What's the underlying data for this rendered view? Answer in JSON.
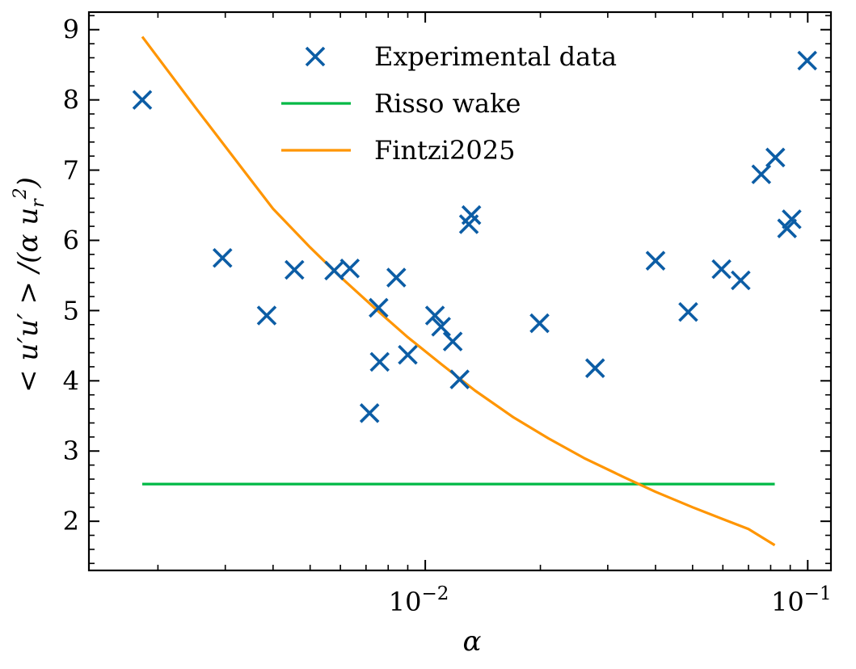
{
  "chart_data": {
    "type": "scatter",
    "title": "",
    "xlabel": "α",
    "ylabel": "< u′u′ > /(α u_r²)",
    "xscale": "log",
    "xlim": [
      0.00132,
      0.115
    ],
    "ylim": [
      1.3,
      9.25
    ],
    "grid": false,
    "legend_position": "top-center",
    "x_ticks": [
      {
        "value": 0.01,
        "label": "10",
        "exponent": "−2"
      },
      {
        "value": 0.1,
        "label": "10",
        "exponent": "−1"
      }
    ],
    "y_ticks": [
      {
        "value": 2,
        "label": "2"
      },
      {
        "value": 3,
        "label": "3"
      },
      {
        "value": 4,
        "label": "4"
      },
      {
        "value": 5,
        "label": "5"
      },
      {
        "value": 6,
        "label": "6"
      },
      {
        "value": 7,
        "label": "7"
      },
      {
        "value": 8,
        "label": "8"
      },
      {
        "value": 9,
        "label": "9"
      }
    ],
    "series": [
      {
        "name": "Experimental data",
        "kind": "marker",
        "marker": "x",
        "color": "#0C5DA5",
        "points": [
          [
            0.00182,
            8.0
          ],
          [
            0.00295,
            5.75
          ],
          [
            0.00385,
            4.93
          ],
          [
            0.00455,
            5.58
          ],
          [
            0.00578,
            5.57
          ],
          [
            0.00635,
            5.6
          ],
          [
            0.00715,
            3.54
          ],
          [
            0.00755,
            5.04
          ],
          [
            0.0076,
            4.27
          ],
          [
            0.0084,
            5.47
          ],
          [
            0.009,
            4.37
          ],
          [
            0.0106,
            4.93
          ],
          [
            0.011,
            4.77
          ],
          [
            0.0118,
            4.56
          ],
          [
            0.0123,
            4.02
          ],
          [
            0.013,
            6.23
          ],
          [
            0.0132,
            6.36
          ],
          [
            0.0199,
            4.82
          ],
          [
            0.0278,
            4.18
          ],
          [
            0.04,
            5.71
          ],
          [
            0.0487,
            4.98
          ],
          [
            0.0595,
            5.59
          ],
          [
            0.0668,
            5.43
          ],
          [
            0.0756,
            6.94
          ],
          [
            0.0823,
            7.18
          ],
          [
            0.0883,
            6.17
          ],
          [
            0.0908,
            6.3
          ],
          [
            0.0997,
            8.56
          ]
        ]
      },
      {
        "name": "Risso wake",
        "kind": "line",
        "color": "#00B945",
        "points": [
          [
            0.00182,
            2.53
          ],
          [
            0.082,
            2.53
          ]
        ]
      },
      {
        "name": "Fintzi2025",
        "kind": "line",
        "color": "#FF9500",
        "points": [
          [
            0.00182,
            8.9
          ],
          [
            0.0025,
            7.9
          ],
          [
            0.0034,
            6.95
          ],
          [
            0.004,
            6.45
          ],
          [
            0.005,
            5.9
          ],
          [
            0.006,
            5.48
          ],
          [
            0.0075,
            5.0
          ],
          [
            0.009,
            4.62
          ],
          [
            0.011,
            4.24
          ],
          [
            0.0135,
            3.86
          ],
          [
            0.017,
            3.48
          ],
          [
            0.021,
            3.18
          ],
          [
            0.026,
            2.9
          ],
          [
            0.033,
            2.63
          ],
          [
            0.04,
            2.42
          ],
          [
            0.05,
            2.2
          ],
          [
            0.06,
            2.03
          ],
          [
            0.07,
            1.89
          ],
          [
            0.082,
            1.66
          ]
        ]
      }
    ]
  }
}
